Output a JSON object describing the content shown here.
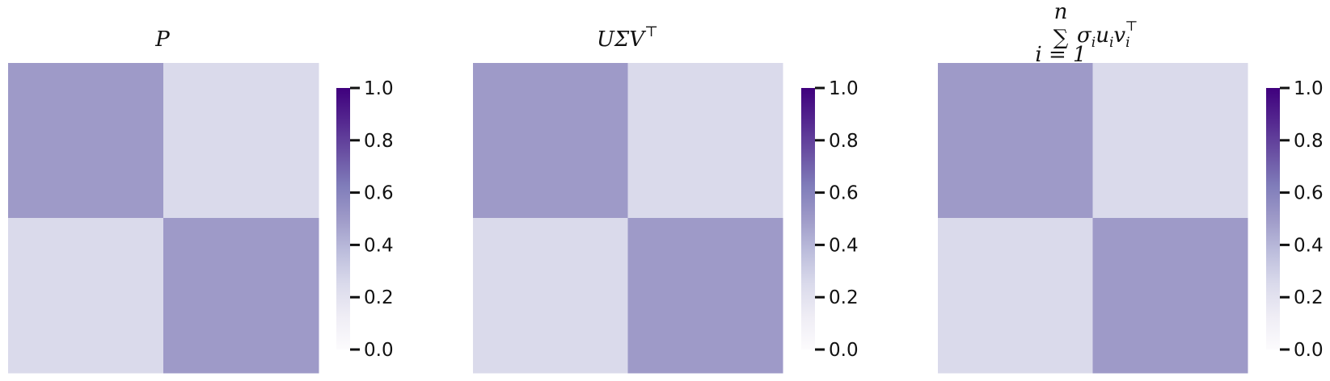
{
  "chart_data": [
    {
      "type": "heatmap",
      "title": "P",
      "rows": 2,
      "cols": 2,
      "values": [
        [
          0.5,
          0.25
        ],
        [
          0.25,
          0.5
        ]
      ],
      "colorbar": {
        "min": 0.0,
        "max": 1.0,
        "ticks": [
          "0.0",
          "0.2",
          "0.4",
          "0.6",
          "0.8",
          "1.0"
        ]
      },
      "colormap": "Purples"
    },
    {
      "type": "heatmap",
      "title_parts": {
        "base": "UΣV",
        "sup": "⊤"
      },
      "rows": 2,
      "cols": 2,
      "values": [
        [
          0.5,
          0.25
        ],
        [
          0.25,
          0.5
        ]
      ],
      "colorbar": {
        "min": 0.0,
        "max": 1.0,
        "ticks": [
          "0.0",
          "0.2",
          "0.4",
          "0.6",
          "0.8",
          "1.0"
        ]
      },
      "colormap": "Purples"
    },
    {
      "type": "heatmap",
      "title_parts": {
        "sum_upper": "n",
        "sum_lower": "i = 1",
        "symbol": "∑",
        "body": "σ",
        "i1": "i",
        "u": "u",
        "i2": "i",
        "v": "v",
        "i3": "i",
        "sup": "⊤"
      },
      "rows": 2,
      "cols": 2,
      "values": [
        [
          0.5,
          0.25
        ],
        [
          0.25,
          0.5
        ]
      ],
      "colorbar": {
        "min": 0.0,
        "max": 1.0,
        "ticks": [
          "0.0",
          "0.2",
          "0.4",
          "0.6",
          "0.8",
          "1.0"
        ]
      },
      "colormap": "Purples"
    }
  ],
  "colors": {
    "colormap_low": "#fcfbfd",
    "colormap_mid": "#9e9ac8",
    "colormap_high": "#3f007d"
  }
}
